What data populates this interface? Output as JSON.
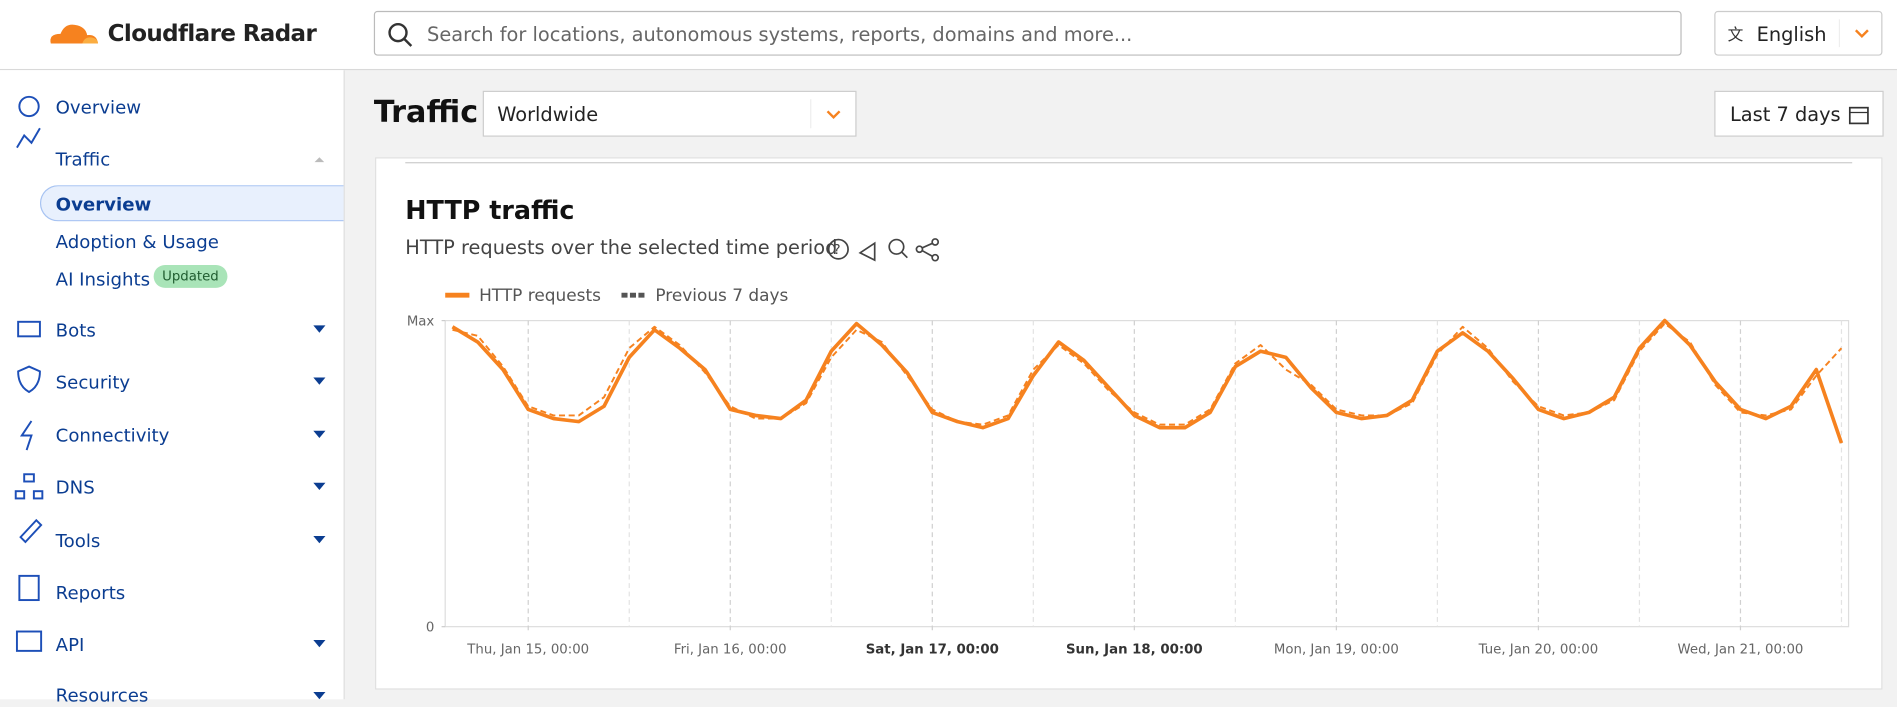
{
  "header": {
    "brand": "Cloudflare Radar",
    "search_placeholder": "Search for locations, autonomous systems, reports, domains and more...",
    "language": "English"
  },
  "sidebar": {
    "items": [
      "Overview",
      "Traffic",
      "Bots",
      "Security",
      "Connectivity",
      "DNS",
      "Tools",
      "Reports",
      "API",
      "Resources"
    ],
    "traffic_sub": [
      "Overview",
      "Adoption & Usage",
      "AI Insights"
    ],
    "badge": "Updated"
  },
  "toolbar": {
    "title": "Traffic",
    "location": "Worldwide",
    "range": "Last 7 days"
  },
  "card": {
    "title": "HTTP traffic",
    "subtitle": "HTTP requests over the selected time period"
  },
  "chart_data": {
    "type": "line",
    "x": [
      "Wed, Jan 14, 15:00",
      "Wed, Jan 14, 18:00",
      "Wed, Jan 14, 21:00",
      "Thu, Jan 15, 00:00",
      "Thu, Jan 15, 03:00",
      "Thu, Jan 15, 06:00",
      "Thu, Jan 15, 09:00",
      "Thu, Jan 15, 12:00",
      "Thu, Jan 15, 15:00",
      "Thu, Jan 15, 18:00",
      "Thu, Jan 15, 21:00",
      "Fri, Jan 16, 00:00",
      "Fri, Jan 16, 03:00",
      "Fri, Jan 16, 06:00",
      "Fri, Jan 16, 09:00",
      "Fri, Jan 16, 12:00",
      "Fri, Jan 16, 15:00",
      "Fri, Jan 16, 18:00",
      "Fri, Jan 16, 21:00",
      "Sat, Jan 17, 00:00",
      "Sat, Jan 17, 03:00",
      "Sat, Jan 17, 06:00",
      "Sat, Jan 17, 09:00",
      "Sat, Jan 17, 12:00",
      "Sat, Jan 17, 15:00",
      "Sat, Jan 17, 18:00",
      "Sat, Jan 17, 21:00",
      "Sun, Jan 18, 00:00",
      "Sun, Jan 18, 03:00",
      "Sun, Jan 18, 06:00",
      "Sun, Jan 18, 09:00",
      "Sun, Jan 18, 12:00",
      "Sun, Jan 18, 15:00",
      "Sun, Jan 18, 18:00",
      "Sun, Jan 18, 21:00",
      "Mon, Jan 19, 00:00",
      "Mon, Jan 19, 03:00",
      "Mon, Jan 19, 06:00",
      "Mon, Jan 19, 09:00",
      "Mon, Jan 19, 12:00",
      "Mon, Jan 19, 15:00",
      "Mon, Jan 19, 18:00",
      "Mon, Jan 19, 21:00",
      "Tue, Jan 20, 00:00",
      "Tue, Jan 20, 03:00",
      "Tue, Jan 20, 06:00",
      "Tue, Jan 20, 09:00",
      "Tue, Jan 20, 12:00",
      "Tue, Jan 20, 15:00",
      "Tue, Jan 20, 18:00",
      "Tue, Jan 20, 21:00",
      "Wed, Jan 21, 00:00",
      "Wed, Jan 21, 03:00",
      "Wed, Jan 21, 06:00",
      "Wed, Jan 21, 09:00",
      "Wed, Jan 21, 12:00"
    ],
    "series": [
      {
        "name": "HTTP requests",
        "color": "#f6821f",
        "dashed": false,
        "values": [
          0.98,
          0.93,
          0.84,
          0.71,
          0.68,
          0.67,
          0.72,
          0.88,
          0.97,
          0.91,
          0.84,
          0.71,
          0.69,
          0.68,
          0.74,
          0.9,
          0.99,
          0.92,
          0.83,
          0.7,
          0.67,
          0.65,
          0.68,
          0.82,
          0.93,
          0.87,
          0.78,
          0.69,
          0.65,
          0.65,
          0.7,
          0.85,
          0.9,
          0.88,
          0.78,
          0.7,
          0.68,
          0.69,
          0.74,
          0.9,
          0.96,
          0.9,
          0.81,
          0.71,
          0.68,
          0.7,
          0.75,
          0.91,
          1.0,
          0.92,
          0.8,
          0.71,
          0.68,
          0.72,
          0.84,
          0.6
        ]
      },
      {
        "name": "Previous 7 days",
        "color": "#f6821f",
        "dashed": true,
        "values": [
          0.97,
          0.95,
          0.85,
          0.72,
          0.69,
          0.69,
          0.75,
          0.91,
          0.98,
          0.92,
          0.83,
          0.72,
          0.68,
          0.68,
          0.73,
          0.88,
          0.97,
          0.93,
          0.82,
          0.71,
          0.67,
          0.66,
          0.69,
          0.84,
          0.92,
          0.86,
          0.77,
          0.7,
          0.66,
          0.66,
          0.71,
          0.86,
          0.92,
          0.84,
          0.79,
          0.71,
          0.69,
          0.69,
          0.73,
          0.89,
          0.98,
          0.91,
          0.8,
          0.72,
          0.69,
          0.7,
          0.74,
          0.9,
          0.99,
          0.93,
          0.79,
          0.7,
          0.69,
          0.71,
          0.82,
          0.91
        ]
      }
    ],
    "xticks": [
      "Thu, Jan 15, 00:00",
      "Fri, Jan 16, 00:00",
      "Sat, Jan 17, 00:00",
      "Sun, Jan 18, 00:00",
      "Mon, Jan 19, 00:00",
      "Tue, Jan 20, 00:00",
      "Wed, Jan 21, 00:00"
    ],
    "ylim": [
      0,
      1
    ],
    "yticks": [
      {
        "value": 1,
        "label": "Max"
      },
      0
    ]
  }
}
